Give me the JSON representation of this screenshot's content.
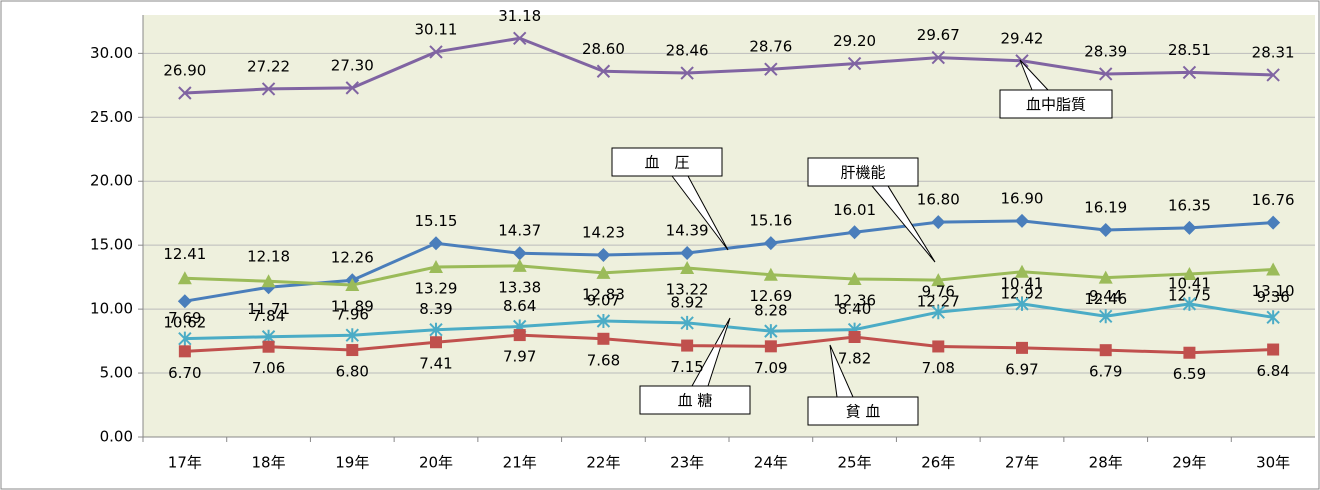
{
  "chart_data": {
    "type": "line",
    "categories": [
      "17年",
      "18年",
      "19年",
      "20年",
      "21年",
      "22年",
      "23年",
      "24年",
      "25年",
      "26年",
      "27年",
      "28年",
      "29年",
      "30年"
    ],
    "ylim": [
      0,
      33
    ],
    "yticks": [
      {
        "value": 0,
        "label": "0.00"
      },
      {
        "value": 5,
        "label": "5.00"
      },
      {
        "value": 10,
        "label": "10.00"
      },
      {
        "value": 15,
        "label": "15.00"
      },
      {
        "value": 20,
        "label": "20.00"
      },
      {
        "value": 25,
        "label": "25.00"
      },
      {
        "value": 30,
        "label": "30.00"
      }
    ],
    "grid": true,
    "series": [
      {
        "name": "血中脂質",
        "color": "#8064a2",
        "marker": "x",
        "values": [
          26.9,
          27.22,
          27.3,
          30.11,
          31.18,
          28.6,
          28.46,
          28.76,
          29.2,
          29.67,
          29.42,
          28.39,
          28.51,
          28.31
        ],
        "value_labels": [
          "26.90",
          "27.22",
          "27.30",
          "30.11",
          "31.18",
          "28.60",
          "28.46",
          "28.76",
          "29.20",
          "29.67",
          "29.42",
          "28.39",
          "28.51",
          "28.31"
        ]
      },
      {
        "name": "血　圧",
        "color": "#4a7ebb",
        "marker": "diamond",
        "values": [
          10.62,
          11.71,
          12.26,
          15.15,
          14.37,
          14.23,
          14.39,
          15.16,
          16.01,
          16.8,
          16.9,
          16.19,
          16.35,
          16.76
        ],
        "value_labels": [
          "10.62",
          "11.71",
          "12.26",
          "15.15",
          "14.37",
          "14.23",
          "14.39",
          "15.16",
          "16.01",
          "16.80",
          "16.90",
          "16.19",
          "16.35",
          "16.76"
        ]
      },
      {
        "name": "肝機能",
        "color": "#9bbb59",
        "marker": "triangle",
        "values": [
          12.41,
          12.18,
          11.89,
          13.29,
          13.38,
          12.83,
          13.22,
          12.69,
          12.36,
          12.27,
          12.92,
          12.46,
          12.75,
          13.1
        ],
        "value_labels": [
          "12.41",
          "12.18",
          "11.89",
          "13.29",
          "13.38",
          "12.83",
          "13.22",
          "12.69",
          "12.36",
          "12.27",
          "12.92",
          "12.46",
          "12.75",
          "13.10"
        ]
      },
      {
        "name": "血 糖",
        "color": "#4bacc6",
        "marker": "asterisk",
        "values": [
          7.69,
          7.84,
          7.96,
          8.39,
          8.64,
          9.07,
          8.92,
          8.28,
          8.4,
          9.76,
          10.41,
          9.44,
          10.41,
          9.36
        ],
        "value_labels": [
          "7.69",
          "7.84",
          "7.96",
          "8.39",
          "8.64",
          "9.07",
          "8.92",
          "8.28",
          "8.40",
          "9.76",
          "10.41",
          "9.44",
          "10.41",
          "9.36"
        ]
      },
      {
        "name": "貧 血",
        "color": "#c0504d",
        "marker": "square",
        "values": [
          6.7,
          7.06,
          6.8,
          7.41,
          7.97,
          7.68,
          7.15,
          7.09,
          7.82,
          7.08,
          6.97,
          6.79,
          6.59,
          6.84
        ],
        "value_labels": [
          "6.70",
          "7.06",
          "6.80",
          "7.41",
          "7.97",
          "7.68",
          "7.15",
          "7.09",
          "7.82",
          "7.08",
          "6.97",
          "6.79",
          "6.59",
          "6.84"
        ]
      }
    ]
  }
}
